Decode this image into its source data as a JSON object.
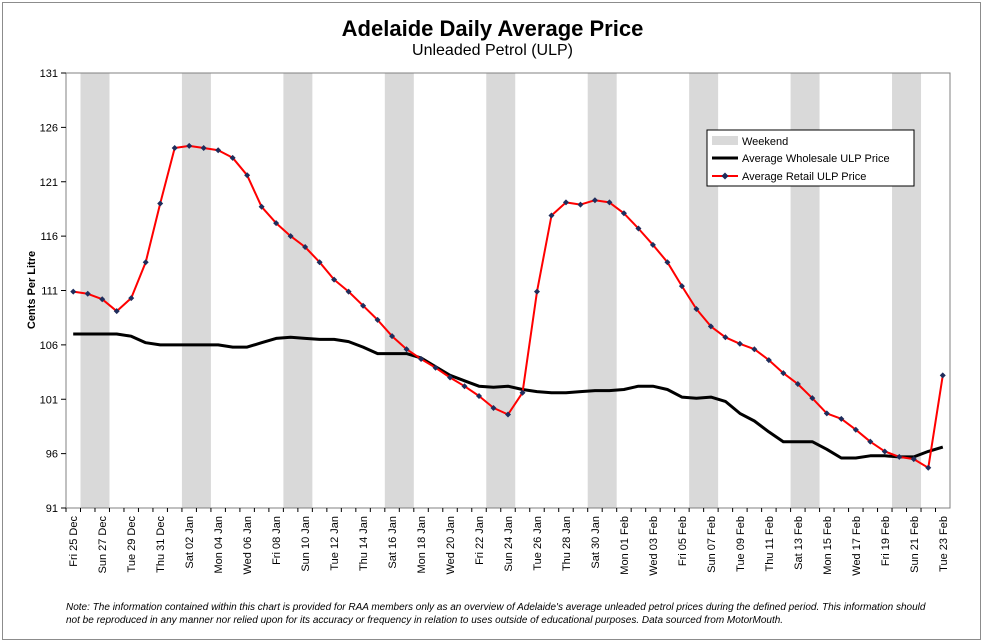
{
  "colors": {
    "weekend": "#d9d9d9",
    "wholesale": "#000000",
    "retail_line": "#ff0000",
    "retail_marker": "#1f2d5c",
    "frame": "#8c8c8c",
    "grid": "#808080"
  },
  "note": "Note: The information contained within this chart is provided for RAA members only as an overview of Adelaide's average unleaded petrol prices during the defined period. This information should not be reproduced in any manner nor relied upon for its accuracy or frequency in relation to uses outside of educational purposes. Data sourced from MotorMouth.",
  "chart_data": {
    "type": "line",
    "title": "Adelaide Daily Average Price",
    "subtitle": "Unleaded Petrol (ULP)",
    "ylabel": "Cents Per Litre",
    "xlabel": "",
    "ylim": [
      91,
      131
    ],
    "yticks": [
      91,
      96,
      101,
      106,
      111,
      116,
      121,
      126,
      131
    ],
    "grid": false,
    "legend_position": "top-right",
    "dates": [
      "Fri 25 Dec",
      "Sat 26 Dec",
      "Sun 27 Dec",
      "Mon 28 Dec",
      "Tue 29 Dec",
      "Wed 30 Dec",
      "Thu 31 Dec",
      "Fri 01 Jan",
      "Sat 02 Jan",
      "Sun 03 Jan",
      "Mon 04 Jan",
      "Tue 05 Jan",
      "Wed 06 Jan",
      "Thu 07 Jan",
      "Fri 08 Jan",
      "Sat 09 Jan",
      "Sun 10 Jan",
      "Mon 11 Jan",
      "Tue 12 Jan",
      "Wed 13 Jan",
      "Thu 14 Jan",
      "Fri 15 Jan",
      "Sat 16 Jan",
      "Sun 17 Jan",
      "Mon 18 Jan",
      "Tue 19 Jan",
      "Wed 20 Jan",
      "Thu 21 Jan",
      "Fri 22 Jan",
      "Sat 23 Jan",
      "Sun 24 Jan",
      "Mon 25 Jan",
      "Tue 26 Jan",
      "Wed 27 Jan",
      "Thu 28 Jan",
      "Fri 29 Jan",
      "Sat 30 Jan",
      "Sun 31 Jan",
      "Mon 01 Feb",
      "Tue 02 Feb",
      "Wed 03 Feb",
      "Thu 04 Feb",
      "Fri 05 Feb",
      "Sat 06 Feb",
      "Sun 07 Feb",
      "Mon 08 Feb",
      "Tue 09 Feb",
      "Wed 10 Feb",
      "Thu 11 Feb",
      "Fri 12 Feb",
      "Sat 13 Feb",
      "Sun 14 Feb",
      "Mon 15 Feb",
      "Tue 16 Feb",
      "Wed 17 Feb",
      "Thu 18 Feb",
      "Fri 19 Feb",
      "Sat 20 Feb",
      "Sun 21 Feb",
      "Mon 22 Feb",
      "Tue 23 Feb"
    ],
    "x_tick_labels": [
      "Fri 25 Dec",
      "Sun 27 Dec",
      "Tue 29 Dec",
      "Thu 31 Dec",
      "Sat 02 Jan",
      "Mon 04 Jan",
      "Wed 06 Jan",
      "Fri 08 Jan",
      "Sun 10 Jan",
      "Tue 12 Jan",
      "Thu 14 Jan",
      "Sat 16 Jan",
      "Mon 18 Jan",
      "Wed 20 Jan",
      "Fri 22 Jan",
      "Sun 24 Jan",
      "Tue 26 Jan",
      "Thu 28 Jan",
      "Sat 30 Jan",
      "Mon 01 Feb",
      "Wed 03 Feb",
      "Fri 05 Feb",
      "Sun 07 Feb",
      "Tue 09 Feb",
      "Thu 11 Feb",
      "Sat 13 Feb",
      "Mon 15 Feb",
      "Wed 17 Feb",
      "Fri 19 Feb",
      "Sun 21 Feb",
      "Tue 23 Feb"
    ],
    "weekend_date_pairs": [
      [
        "Sat 26 Dec",
        "Sun 27 Dec"
      ],
      [
        "Sat 02 Jan",
        "Sun 03 Jan"
      ],
      [
        "Sat 09 Jan",
        "Sun 10 Jan"
      ],
      [
        "Sat 16 Jan",
        "Sun 17 Jan"
      ],
      [
        "Sat 23 Jan",
        "Sun 24 Jan"
      ],
      [
        "Sat 30 Jan",
        "Sun 31 Jan"
      ],
      [
        "Sat 06 Feb",
        "Sun 07 Feb"
      ],
      [
        "Sat 13 Feb",
        "Sun 14 Feb"
      ],
      [
        "Sat 20 Feb",
        "Sun 21 Feb"
      ]
    ],
    "legend": {
      "weekend": "Weekend",
      "wholesale": "Average Wholesale ULP Price",
      "retail": "Average Retail ULP Price"
    },
    "series": [
      {
        "name": "Average Wholesale ULP Price",
        "values": [
          107.0,
          107.0,
          107.0,
          107.0,
          106.8,
          106.2,
          106.0,
          106.0,
          106.0,
          106.0,
          106.0,
          105.8,
          105.8,
          106.2,
          106.6,
          106.7,
          106.6,
          106.5,
          106.5,
          106.3,
          105.8,
          105.2,
          105.2,
          105.2,
          104.8,
          104.0,
          103.2,
          102.7,
          102.2,
          102.1,
          102.2,
          101.9,
          101.7,
          101.6,
          101.6,
          101.7,
          101.8,
          101.8,
          101.9,
          102.2,
          102.2,
          101.9,
          101.2,
          101.1,
          101.2,
          100.8,
          99.7,
          99.0,
          98.0,
          97.1,
          97.1,
          97.1,
          96.4,
          95.6,
          95.6,
          95.8,
          95.8,
          95.7,
          95.7,
          96.2,
          96.6
        ]
      },
      {
        "name": "Average Retail ULP Price",
        "values": [
          110.9,
          110.7,
          110.2,
          109.1,
          110.3,
          113.6,
          119.0,
          124.1,
          124.3,
          124.1,
          123.9,
          123.2,
          121.6,
          118.7,
          117.2,
          116.0,
          115.0,
          113.6,
          112.0,
          110.9,
          109.6,
          108.3,
          106.8,
          105.6,
          104.7,
          103.9,
          103.0,
          102.2,
          101.3,
          100.2,
          99.6,
          101.6,
          110.9,
          117.9,
          119.1,
          118.9,
          119.3,
          119.1,
          118.1,
          116.7,
          115.2,
          113.6,
          111.4,
          109.3,
          107.7,
          106.7,
          106.1,
          105.6,
          104.6,
          103.4,
          102.4,
          101.1,
          99.7,
          99.2,
          98.2,
          97.1,
          96.2,
          95.7,
          95.5,
          94.7,
          103.2
        ]
      }
    ]
  }
}
